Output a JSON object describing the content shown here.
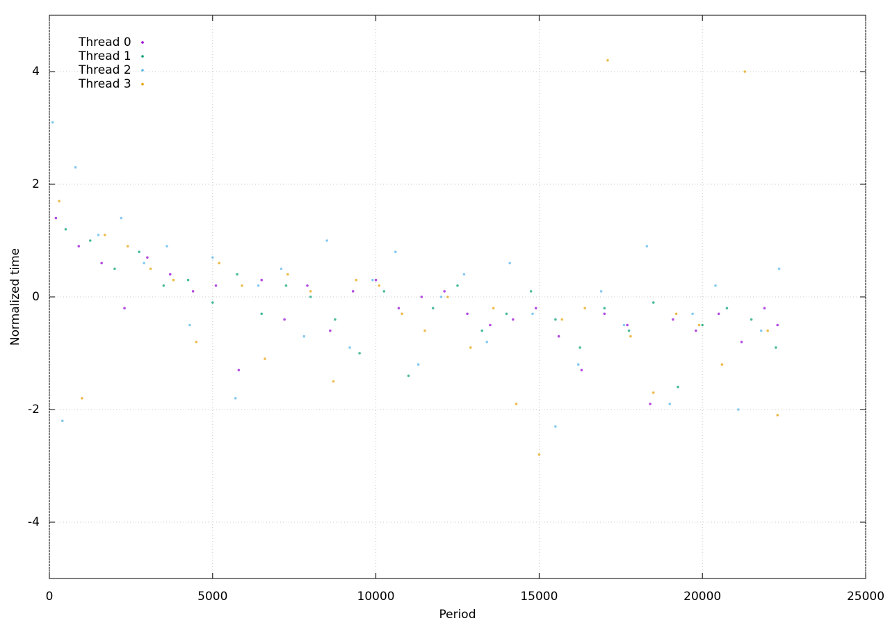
{
  "chart_data": {
    "type": "scatter",
    "xlabel": "Period",
    "ylabel": "Normalized time",
    "xlim": [
      0,
      25000
    ],
    "xticks": [
      0,
      5000,
      10000,
      15000,
      20000,
      25000
    ],
    "ylim": [
      -5,
      5
    ],
    "yticks": [
      -4,
      -2,
      0,
      2,
      4
    ],
    "grid": true,
    "legend": "top-left",
    "series": [
      {
        "name": "Thread 0",
        "color": "#9400d3",
        "x": [
          200,
          900,
          1600,
          2300,
          3000,
          3700,
          4400,
          5100,
          5800,
          6500,
          7200,
          7900,
          8600,
          9300,
          10000,
          10700,
          11400,
          12100,
          12800,
          13500,
          14200,
          14900,
          15600,
          16300,
          17000,
          17700,
          18400,
          19100,
          19800,
          20500,
          21200,
          21900,
          22300
        ],
        "values": [
          1.4,
          0.9,
          0.6,
          -0.2,
          0.7,
          0.4,
          0.1,
          0.2,
          -1.3,
          0.3,
          -0.4,
          0.2,
          -0.6,
          0.1,
          0.3,
          -0.2,
          0.0,
          0.1,
          -0.3,
          -0.5,
          -0.4,
          -0.2,
          -0.7,
          -1.3,
          -0.3,
          -0.5,
          -1.9,
          -0.4,
          -0.6,
          -0.3,
          -0.8,
          -0.2,
          -0.5
        ]
      },
      {
        "name": "Thread 1",
        "color": "#009e73",
        "x": [
          500,
          1250,
          2000,
          2750,
          3500,
          4250,
          5000,
          5750,
          6500,
          7250,
          8000,
          8750,
          9500,
          10250,
          11000,
          11750,
          12500,
          13250,
          14000,
          14750,
          15500,
          16250,
          17000,
          17750,
          18500,
          19250,
          20000,
          20750,
          21500,
          22250
        ],
        "values": [
          1.2,
          1.0,
          0.5,
          0.8,
          0.2,
          0.3,
          -0.1,
          0.4,
          -0.3,
          0.2,
          0.0,
          -0.4,
          -1.0,
          0.1,
          -1.4,
          -0.2,
          0.2,
          -0.6,
          -0.3,
          0.1,
          -0.4,
          -0.9,
          -0.2,
          -0.6,
          -0.1,
          -1.6,
          -0.5,
          -0.2,
          -0.4,
          -0.9
        ]
      },
      {
        "name": "Thread 2",
        "color": "#56b4e9",
        "x": [
          100,
          400,
          800,
          1500,
          2200,
          2900,
          3600,
          4300,
          5000,
          5700,
          6400,
          7100,
          7800,
          8500,
          9200,
          9900,
          10600,
          11300,
          12000,
          12700,
          13400,
          14100,
          14800,
          15500,
          16200,
          16900,
          17600,
          18300,
          19000,
          19700,
          20400,
          21100,
          21800,
          22350
        ],
        "values": [
          3.1,
          -2.2,
          2.3,
          1.1,
          1.4,
          0.6,
          0.9,
          -0.5,
          0.7,
          -1.8,
          0.2,
          0.5,
          -0.7,
          1.0,
          -0.9,
          0.3,
          0.8,
          -1.2,
          0.0,
          0.4,
          -0.8,
          0.6,
          -0.3,
          -2.3,
          -1.2,
          0.1,
          -0.5,
          0.9,
          -1.9,
          -0.3,
          0.2,
          -2.0,
          -0.6,
          0.5
        ]
      },
      {
        "name": "Thread 3",
        "color": "#e69f00",
        "x": [
          300,
          1000,
          1700,
          2400,
          3100,
          3800,
          4500,
          5200,
          5900,
          6600,
          7300,
          8000,
          8700,
          9400,
          10100,
          10800,
          11500,
          12200,
          12900,
          13600,
          14300,
          15000,
          15700,
          16400,
          17100,
          17800,
          18500,
          19200,
          19900,
          20600,
          21300,
          22000,
          22300
        ],
        "values": [
          1.7,
          -1.8,
          1.1,
          0.9,
          0.5,
          0.3,
          -0.8,
          0.6,
          0.2,
          -1.1,
          0.4,
          0.1,
          -1.5,
          0.3,
          0.2,
          -0.3,
          -0.6,
          0.0,
          -0.9,
          -0.2,
          -1.9,
          -2.8,
          -0.4,
          -0.2,
          4.2,
          -0.7,
          -1.7,
          -0.3,
          -0.5,
          -1.2,
          4.0,
          -0.6,
          -2.1
        ]
      }
    ]
  }
}
